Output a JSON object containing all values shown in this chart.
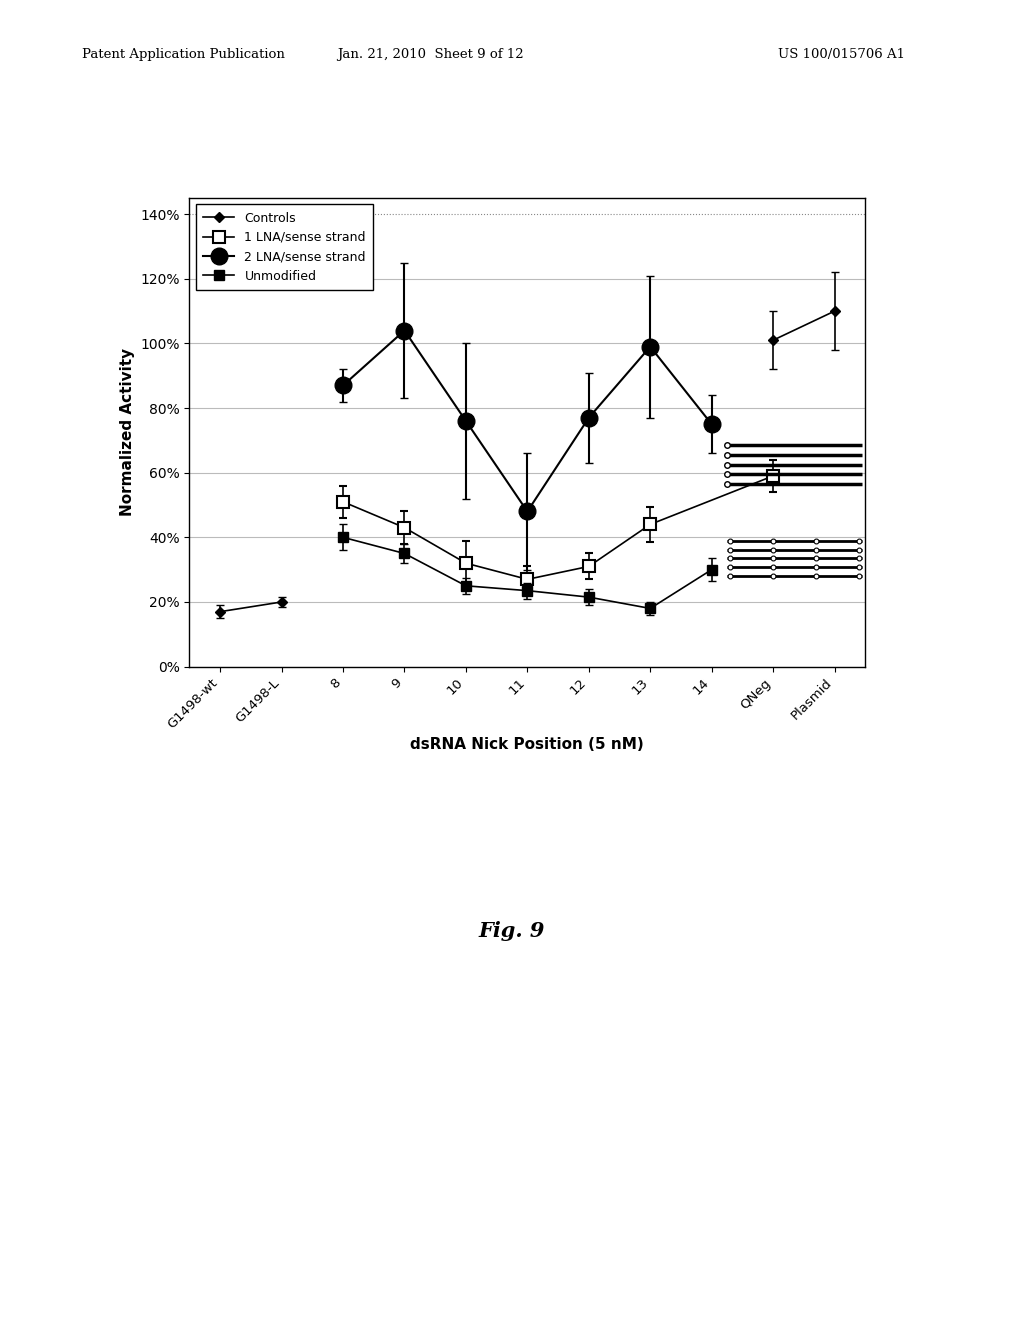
{
  "xlabel": "dsRNA Nick Position (5 nM)",
  "ylabel": "Normalized Activity",
  "ylim": [
    0.0,
    1.45
  ],
  "yticks": [
    0.0,
    0.2,
    0.4,
    0.6,
    0.8,
    1.0,
    1.2,
    1.4
  ],
  "ytick_labels": [
    "0%",
    "20%",
    "40%",
    "60%",
    "80%",
    "100%",
    "120%",
    "140%"
  ],
  "x_categories": [
    "G1498-wt",
    "G1498-L",
    "8",
    "9",
    "10",
    "11",
    "12",
    "13",
    "14",
    "QNeg",
    "Plasmid"
  ],
  "x_numeric": [
    0,
    1,
    2,
    3,
    4,
    5,
    6,
    7,
    8,
    9,
    10
  ],
  "controls_y": [
    0.17,
    0.2,
    null,
    null,
    null,
    null,
    null,
    null,
    null,
    1.01,
    1.1
  ],
  "controls_yerr": [
    0.02,
    0.015,
    null,
    null,
    null,
    null,
    null,
    null,
    null,
    0.09,
    0.12
  ],
  "one_lna_y": [
    null,
    null,
    0.51,
    0.43,
    0.32,
    0.27,
    0.31,
    0.44,
    null,
    0.59,
    null
  ],
  "one_lna_yerr": [
    null,
    null,
    0.05,
    0.05,
    0.07,
    0.04,
    0.04,
    0.055,
    null,
    0.05,
    null
  ],
  "two_lna_y": [
    null,
    null,
    0.87,
    1.04,
    0.76,
    0.48,
    0.77,
    0.99,
    0.75,
    null,
    null
  ],
  "two_lna_yerr": [
    null,
    null,
    0.05,
    0.21,
    0.24,
    0.18,
    0.14,
    0.22,
    0.09,
    null,
    null
  ],
  "unmod_y": [
    null,
    null,
    0.4,
    0.35,
    0.25,
    0.235,
    0.215,
    0.18,
    0.3,
    null,
    null
  ],
  "unmod_yerr": [
    null,
    null,
    0.04,
    0.03,
    0.025,
    0.025,
    0.025,
    0.02,
    0.035,
    null,
    null
  ],
  "fig_caption": "Fig. 9",
  "header_left": "Patent Application Publication",
  "header_center": "Jan. 21, 2010  Sheet 9 of 12",
  "header_right": "US 100/015706 A1",
  "background_color": "#ffffff",
  "line_color": "#000000",
  "grid_color": "#bbbbbb"
}
